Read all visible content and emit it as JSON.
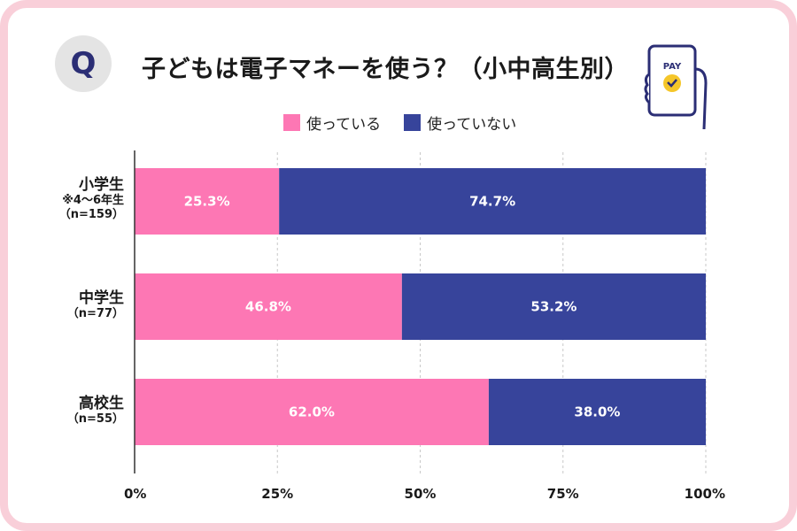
{
  "header": {
    "q_mark": "Q",
    "title": "子どもは電子マネーを使う？（小中高生別）"
  },
  "illustration": {
    "pay_text": "PAY",
    "icon": "phone-pay-icon"
  },
  "colors": {
    "using": "#fd77b4",
    "not_using": "#37449b",
    "accent": "#2b2e75"
  },
  "chart_data": {
    "type": "bar",
    "orientation": "horizontal",
    "stacked": true,
    "percent": true,
    "title": "子どもは電子マネーを使う？（小中高生別）",
    "legend_position": "top",
    "categories": [
      {
        "name": "小学生",
        "note": "※4〜6年生",
        "n": "（n=159）"
      },
      {
        "name": "中学生",
        "note": "",
        "n": "（n=77）"
      },
      {
        "name": "高校生",
        "note": "",
        "n": "（n=55）"
      }
    ],
    "series": [
      {
        "name": "使っている",
        "color": "#fd77b4",
        "values": [
          25.3,
          46.8,
          62.0
        ],
        "labels": [
          "25.3%",
          "46.8%",
          "62.0%"
        ]
      },
      {
        "name": "使っていない",
        "color": "#37449b",
        "values": [
          74.7,
          53.2,
          38.0
        ],
        "labels": [
          "74.7%",
          "53.2%",
          "38.0%"
        ]
      }
    ],
    "xlim": [
      0,
      100
    ],
    "xticks": [
      0,
      25,
      50,
      75,
      100
    ],
    "xtick_labels": [
      "0%",
      "25%",
      "50%",
      "75%",
      "100%"
    ],
    "grid": "vertical dashed"
  }
}
